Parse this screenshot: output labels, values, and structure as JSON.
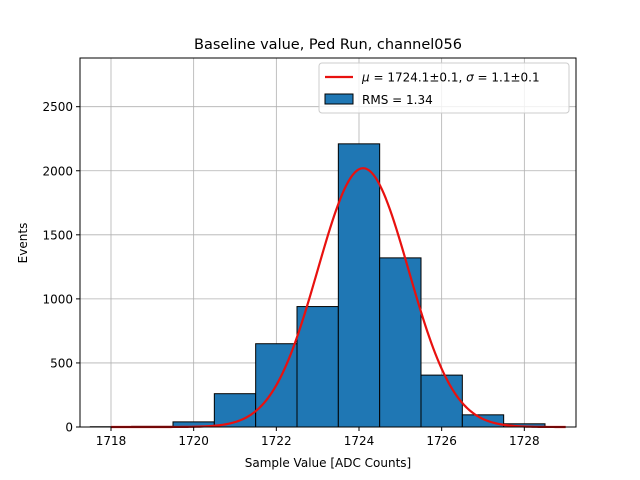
{
  "chart_data": {
    "type": "bar",
    "title": "Baseline value, Ped Run, channel056",
    "xlabel": "Sample Value [ADC Counts]",
    "ylabel": "Events",
    "xlim": [
      1717.25,
      1729.25
    ],
    "ylim": [
      0,
      2880
    ],
    "xticks": [
      1718,
      1720,
      1722,
      1724,
      1726,
      1728
    ],
    "yticks": [
      0,
      500,
      1000,
      1500,
      2000,
      2500
    ],
    "grid": true,
    "legend_position": "top-right",
    "bins": {
      "edges": [
        1717.5,
        1718.5,
        1719.5,
        1720.5,
        1721.5,
        1722.5,
        1723.5,
        1724.5,
        1725.5,
        1726.5,
        1727.5,
        1728.5
      ],
      "counts": [
        2,
        5,
        40,
        260,
        650,
        940,
        2210,
        1320,
        405,
        95,
        25
      ]
    },
    "series": [
      {
        "kind": "histogram",
        "color": "#1f77b4",
        "edge_color": "#000000"
      },
      {
        "kind": "gaussian-fit",
        "color": "#e8110f",
        "mu": 1724.1,
        "sigma": 1.1,
        "amplitude": 2020,
        "x_range": [
          1718,
          1729
        ]
      }
    ],
    "legend": [
      {
        "type": "line",
        "color": "#e8110f",
        "mu_symbol": "μ",
        "mu_text": " = 1724.1±0.1, ",
        "sigma_symbol": "σ",
        "sigma_text": " = 1.1±0.1"
      },
      {
        "type": "patch",
        "color": "#1f77b4",
        "text": "RMS = 1.34"
      }
    ]
  }
}
